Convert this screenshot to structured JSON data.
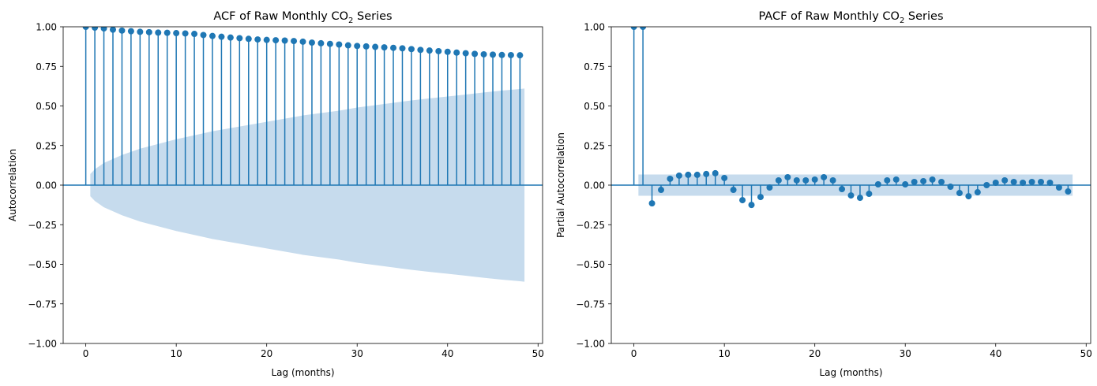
{
  "chart_data": [
    {
      "type": "stem",
      "title": "ACF of Raw Monthly CO",
      "title_subscript": "2",
      "title_suffix": " Series",
      "xlabel": "Lag (months)",
      "ylabel": "Autocorrelation",
      "xlim": [
        -2.5,
        50.5
      ],
      "ylim": [
        -1.0,
        1.0
      ],
      "xticks": [
        0,
        10,
        20,
        30,
        40,
        50
      ],
      "yticks": [
        -1.0,
        -0.75,
        -0.5,
        -0.25,
        0.0,
        0.25,
        0.5,
        0.75,
        1.0
      ],
      "ytick_labels": [
        "−1.00",
        "−0.75",
        "−0.50",
        "−0.25",
        "0.00",
        "0.25",
        "0.50",
        "0.75",
        "1.00"
      ],
      "xtick_labels": [
        "0",
        "10",
        "20",
        "30",
        "40",
        "50"
      ],
      "lags": [
        0,
        1,
        2,
        3,
        4,
        5,
        6,
        7,
        8,
        9,
        10,
        11,
        12,
        13,
        14,
        15,
        16,
        17,
        18,
        19,
        20,
        21,
        22,
        23,
        24,
        25,
        26,
        27,
        28,
        29,
        30,
        31,
        32,
        33,
        34,
        35,
        36,
        37,
        38,
        39,
        40,
        41,
        42,
        43,
        44,
        45,
        46,
        47,
        48
      ],
      "values": [
        1.0,
        0.995,
        0.99,
        0.982,
        0.976,
        0.972,
        0.968,
        0.966,
        0.963,
        0.962,
        0.96,
        0.958,
        0.955,
        0.948,
        0.942,
        0.937,
        0.932,
        0.928,
        0.924,
        0.92,
        0.917,
        0.915,
        0.913,
        0.91,
        0.906,
        0.9,
        0.896,
        0.892,
        0.888,
        0.883,
        0.879,
        0.876,
        0.873,
        0.87,
        0.867,
        0.864,
        0.859,
        0.854,
        0.85,
        0.846,
        0.842,
        0.837,
        0.833,
        0.829,
        0.826,
        0.824,
        0.822,
        0.821,
        0.82
      ],
      "confidence_band": {
        "lags": [
          0.5,
          1,
          2,
          4,
          6,
          8,
          10,
          12,
          14,
          16,
          18,
          20,
          22,
          24,
          26,
          28,
          30,
          32,
          34,
          36,
          38,
          40,
          42,
          44,
          46,
          48,
          48.5
        ],
        "upper": [
          0.07,
          0.1,
          0.14,
          0.19,
          0.23,
          0.26,
          0.29,
          0.315,
          0.34,
          0.36,
          0.38,
          0.4,
          0.42,
          0.44,
          0.455,
          0.47,
          0.49,
          0.505,
          0.52,
          0.535,
          0.548,
          0.56,
          0.572,
          0.585,
          0.597,
          0.607,
          0.61
        ],
        "lower": [
          -0.07,
          -0.1,
          -0.14,
          -0.19,
          -0.23,
          -0.26,
          -0.29,
          -0.315,
          -0.34,
          -0.36,
          -0.38,
          -0.4,
          -0.42,
          -0.44,
          -0.455,
          -0.47,
          -0.49,
          -0.505,
          -0.52,
          -0.535,
          -0.548,
          -0.56,
          -0.572,
          -0.585,
          -0.597,
          -0.607,
          -0.61
        ]
      },
      "colors": {
        "stem": "#1f77b4",
        "band": "#c6dbed",
        "zero_line": "#1f77b4"
      },
      "grid": false
    },
    {
      "type": "stem",
      "title": "PACF of Raw Monthly CO",
      "title_subscript": "2",
      "title_suffix": " Series",
      "xlabel": "Lag (months)",
      "ylabel": "Partial Autocorrelation",
      "xlim": [
        -2.5,
        50.5
      ],
      "ylim": [
        -1.0,
        1.0
      ],
      "xticks": [
        0,
        10,
        20,
        30,
        40,
        50
      ],
      "yticks": [
        -1.0,
        -0.75,
        -0.5,
        -0.25,
        0.0,
        0.25,
        0.5,
        0.75,
        1.0
      ],
      "ytick_labels": [
        "−1.00",
        "−0.75",
        "−0.50",
        "−0.25",
        "0.00",
        "0.25",
        "0.50",
        "0.75",
        "1.00"
      ],
      "xtick_labels": [
        "0",
        "10",
        "20",
        "30",
        "40",
        "50"
      ],
      "lags": [
        0,
        1,
        2,
        3,
        4,
        5,
        6,
        7,
        8,
        9,
        10,
        11,
        12,
        13,
        14,
        15,
        16,
        17,
        18,
        19,
        20,
        21,
        22,
        23,
        24,
        25,
        26,
        27,
        28,
        29,
        30,
        31,
        32,
        33,
        34,
        35,
        36,
        37,
        38,
        39,
        40,
        41,
        42,
        43,
        44,
        45,
        46,
        47,
        48
      ],
      "values": [
        1.0,
        1.0,
        -0.115,
        -0.03,
        0.04,
        0.06,
        0.065,
        0.065,
        0.07,
        0.075,
        0.045,
        -0.03,
        -0.095,
        -0.125,
        -0.075,
        -0.015,
        0.03,
        0.05,
        0.03,
        0.03,
        0.035,
        0.05,
        0.03,
        -0.025,
        -0.065,
        -0.08,
        -0.055,
        0.005,
        0.03,
        0.035,
        0.005,
        0.02,
        0.025,
        0.035,
        0.02,
        -0.01,
        -0.05,
        -0.07,
        -0.045,
        0.0,
        0.015,
        0.03,
        0.02,
        0.015,
        0.02,
        0.02,
        0.015,
        -0.015,
        -0.04
      ],
      "confidence_band": {
        "lags": [
          0.5,
          48.5
        ],
        "upper": [
          0.067,
          0.067
        ],
        "lower": [
          -0.067,
          -0.067
        ]
      },
      "colors": {
        "stem": "#1f77b4",
        "band": "#c6dbed",
        "zero_line": "#1f77b4"
      },
      "grid": false
    }
  ]
}
